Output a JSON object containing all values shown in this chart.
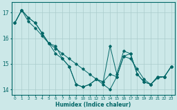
{
  "xlabel": "Humidex (Indice chaleur)",
  "ylabel": "",
  "background_color": "#cce8e8",
  "grid_color": "#aacccc",
  "line_color": "#006666",
  "series": [
    [
      16.6,
      17.1,
      16.8,
      16.6,
      16.2,
      15.8,
      15.7,
      15.2,
      14.9,
      14.2,
      14.1,
      14.2,
      14.4,
      14.3,
      15.7,
      14.6,
      15.5,
      15.4,
      14.6,
      14.3,
      14.2,
      14.5,
      14.5,
      14.9
    ],
    [
      16.6,
      17.1,
      16.8,
      16.6,
      16.2,
      15.8,
      15.4,
      15.2,
      14.9,
      14.2,
      14.1,
      14.2,
      14.4,
      14.3,
      14.6,
      14.5,
      15.3,
      15.4,
      14.6,
      14.3,
      14.2,
      14.5,
      14.5,
      14.9
    ],
    [
      16.6,
      17.1,
      16.65,
      16.4,
      16.1,
      15.8,
      15.6,
      15.4,
      15.2,
      15.0,
      14.8,
      14.6,
      14.4,
      14.2,
      14.0,
      14.5,
      15.3,
      15.2,
      14.8,
      14.4,
      14.2,
      14.45,
      14.5,
      14.9
    ]
  ],
  "xlim": [
    -0.5,
    23.5
  ],
  "ylim": [
    13.8,
    17.4
  ],
  "yticks": [
    14,
    15,
    16,
    17
  ],
  "xticks": [
    0,
    1,
    2,
    3,
    4,
    5,
    6,
    7,
    8,
    9,
    10,
    11,
    12,
    13,
    14,
    15,
    16,
    17,
    18,
    19,
    20,
    21,
    22,
    23
  ],
  "figwidth": 2.56,
  "figheight": 1.6,
  "dpi": 100
}
